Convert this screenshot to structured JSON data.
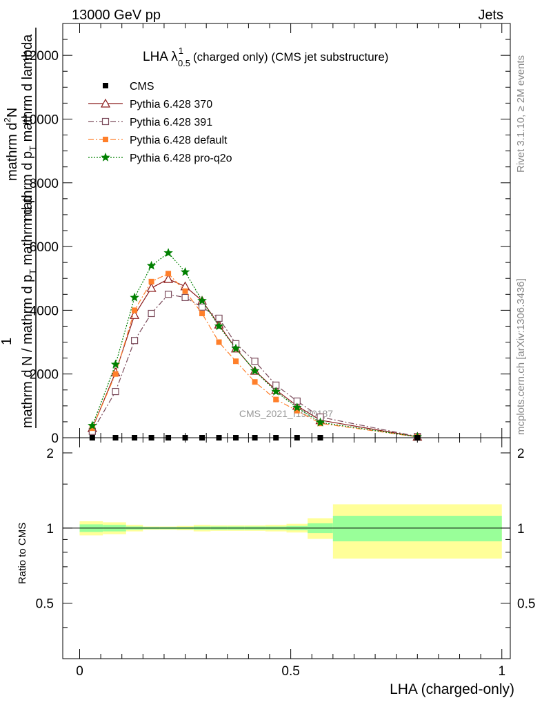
{
  "header": {
    "left": "13000 GeV pp",
    "right": "Jets"
  },
  "side_labels": {
    "rivet": "Rivet 3.1.10, ≥ 2M events",
    "mcplots": "mcplots.cern.ch [arXiv:1306.3436]"
  },
  "chart_data": [
    {
      "type": "line",
      "panel": "main",
      "title_main": "LHA λ",
      "title_sup": "1",
      "title_sub": "0.5",
      "title_rest": "(charged only) (CMS jet substructure)",
      "watermark": "CMS_2021_I1920187",
      "ylabel_top": "mathrm d",
      "ylabel_top_sup": "2",
      "ylabel_top_tail": "N",
      "ylabel_top_line2": "mathrm d p",
      "ylabel_top_line2_sub": "T",
      "ylabel_top_line2_tail": " mathrm d lambda",
      "ylabel_bottom": "mathrm d N / mathrm d p",
      "ylabel_bottom_sub": "T",
      "ylabel_bottom_tail": " mathrm d p",
      "ylabel_one": "1",
      "ylim": [
        0,
        13000
      ],
      "yticks": [
        0,
        2000,
        4000,
        6000,
        8000,
        10000,
        12000
      ],
      "ytick_labels": [
        "0",
        "2000",
        "4000",
        "6000",
        "8000",
        "10000",
        "12000"
      ],
      "xlim": [
        -0.04,
        1.02
      ],
      "legend_placement": "top-left",
      "series": [
        {
          "name": "CMS",
          "color": "#000000",
          "marker": "square-filled",
          "line": "none",
          "x": [
            0.03,
            0.085,
            0.13,
            0.17,
            0.21,
            0.25,
            0.29,
            0.33,
            0.37,
            0.415,
            0.465,
            0.515,
            0.57,
            0.8
          ],
          "values": [
            0,
            0,
            0,
            0,
            0,
            0,
            0,
            0,
            0,
            0,
            0,
            0,
            0,
            0
          ]
        },
        {
          "name": "Pythia 6.428 370",
          "color": "#8b1a1a",
          "marker": "triangle-open",
          "line": "solid",
          "x": [
            0.03,
            0.085,
            0.13,
            0.17,
            0.21,
            0.25,
            0.29,
            0.33,
            0.37,
            0.415,
            0.465,
            0.515,
            0.57,
            0.8
          ],
          "values": [
            300,
            2050,
            3850,
            4700,
            4980,
            4750,
            4300,
            3550,
            2800,
            2100,
            1500,
            1000,
            550,
            30
          ]
        },
        {
          "name": "Pythia 6.428 391",
          "color": "#7a4a5a",
          "marker": "square-open",
          "line": "dashdot",
          "x": [
            0.03,
            0.085,
            0.13,
            0.17,
            0.21,
            0.25,
            0.29,
            0.33,
            0.37,
            0.415,
            0.465,
            0.515,
            0.57,
            0.8
          ],
          "values": [
            200,
            1450,
            3050,
            3900,
            4500,
            4400,
            4100,
            3750,
            2950,
            2400,
            1650,
            1150,
            650,
            40
          ]
        },
        {
          "name": "Pythia 6.428 default",
          "color": "#ff7f2a",
          "marker": "square-filled",
          "line": "dashdot",
          "x": [
            0.03,
            0.085,
            0.13,
            0.17,
            0.21,
            0.25,
            0.29,
            0.33,
            0.37,
            0.415,
            0.465,
            0.515,
            0.57,
            0.8
          ],
          "values": [
            300,
            2000,
            4000,
            4900,
            5150,
            4600,
            3900,
            3000,
            2400,
            1750,
            1200,
            850,
            450,
            25
          ]
        },
        {
          "name": "Pythia 6.428 pro-q2o",
          "color": "#008000",
          "marker": "star-open",
          "line": "dotted",
          "x": [
            0.03,
            0.085,
            0.13,
            0.17,
            0.21,
            0.25,
            0.29,
            0.33,
            0.37,
            0.415,
            0.465,
            0.515,
            0.57,
            0.8
          ],
          "values": [
            380,
            2300,
            4400,
            5400,
            5800,
            5200,
            4300,
            3500,
            2800,
            2100,
            1450,
            950,
            480,
            28
          ]
        }
      ]
    },
    {
      "type": "area",
      "panel": "ratio",
      "ylabel": "Ratio to CMS",
      "xlabel": "LHA (charged-only)",
      "ylim": [
        0.3,
        2.3
      ],
      "yticks": [
        0.5,
        1,
        2
      ],
      "ytick_labels": [
        "0.5",
        "1",
        "2"
      ],
      "right_ytick_labels": [
        "0.5",
        "1",
        "2"
      ],
      "xlim": [
        -0.04,
        1.02
      ],
      "xticks": [
        0,
        0.5,
        1
      ],
      "xtick_labels": [
        "0",
        "0.5",
        "1"
      ],
      "reference_line": 1,
      "bins": [
        {
          "lo": 0.0,
          "hi": 0.055,
          "stat": [
            0.965,
            1.035
          ],
          "total": [
            0.935,
            1.065
          ]
        },
        {
          "lo": 0.055,
          "hi": 0.11,
          "stat": [
            0.97,
            1.03
          ],
          "total": [
            0.945,
            1.055
          ]
        },
        {
          "lo": 0.11,
          "hi": 0.15,
          "stat": [
            0.985,
            1.015
          ],
          "total": [
            0.97,
            1.03
          ]
        },
        {
          "lo": 0.15,
          "hi": 0.19,
          "stat": [
            0.99,
            1.01
          ],
          "total": [
            0.985,
            1.015
          ]
        },
        {
          "lo": 0.19,
          "hi": 0.23,
          "stat": [
            0.99,
            1.01
          ],
          "total": [
            0.985,
            1.015
          ]
        },
        {
          "lo": 0.23,
          "hi": 0.27,
          "stat": [
            0.99,
            1.01
          ],
          "total": [
            0.98,
            1.02
          ]
        },
        {
          "lo": 0.27,
          "hi": 0.31,
          "stat": [
            0.985,
            1.015
          ],
          "total": [
            0.97,
            1.03
          ]
        },
        {
          "lo": 0.31,
          "hi": 0.35,
          "stat": [
            0.985,
            1.015
          ],
          "total": [
            0.975,
            1.025
          ]
        },
        {
          "lo": 0.35,
          "hi": 0.39,
          "stat": [
            0.985,
            1.015
          ],
          "total": [
            0.975,
            1.025
          ]
        },
        {
          "lo": 0.39,
          "hi": 0.44,
          "stat": [
            0.985,
            1.015
          ],
          "total": [
            0.975,
            1.025
          ]
        },
        {
          "lo": 0.44,
          "hi": 0.49,
          "stat": [
            0.985,
            1.015
          ],
          "total": [
            0.97,
            1.03
          ]
        },
        {
          "lo": 0.49,
          "hi": 0.54,
          "stat": [
            0.98,
            1.02
          ],
          "total": [
            0.96,
            1.04
          ]
        },
        {
          "lo": 0.54,
          "hi": 0.6,
          "stat": [
            0.955,
            1.045
          ],
          "total": [
            0.905,
            1.095
          ]
        },
        {
          "lo": 0.6,
          "hi": 1.0,
          "stat": [
            0.885,
            1.12
          ],
          "total": [
            0.755,
            1.245
          ]
        }
      ],
      "stat_color": "#99ff99",
      "total_color": "#ffff99"
    }
  ]
}
